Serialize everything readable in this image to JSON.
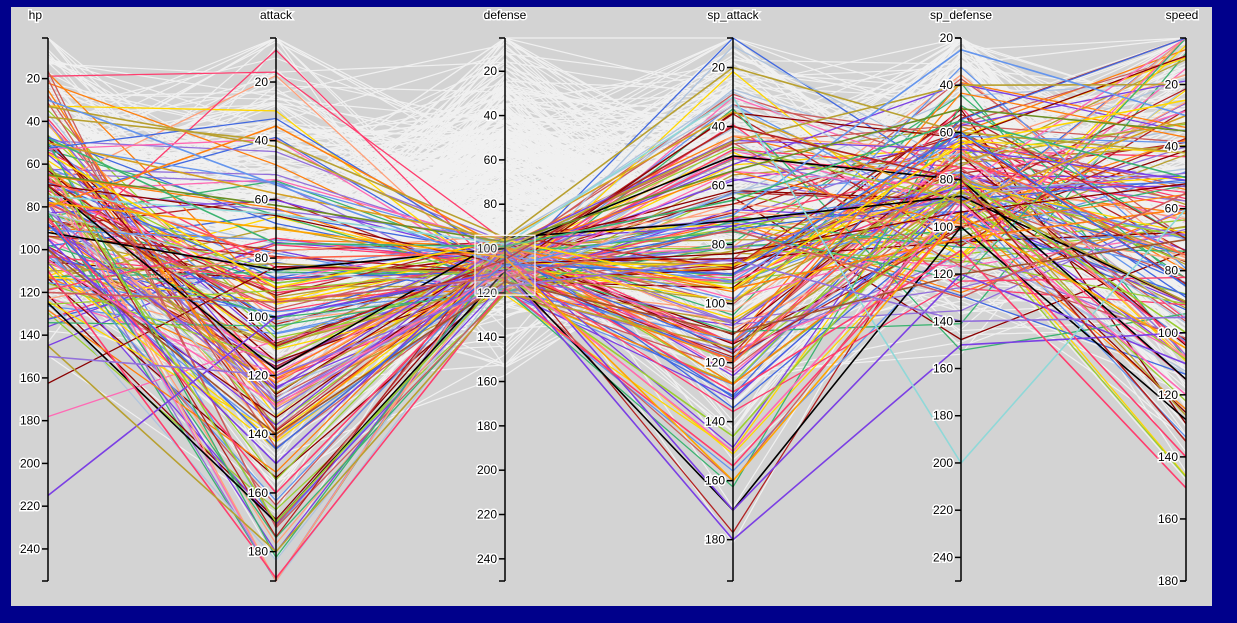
{
  "chart_data": {
    "type": "parallel-coordinates",
    "dimensions": [
      {
        "name": "hp",
        "domain": [
          1,
          255
        ],
        "ticks": [
          20,
          40,
          60,
          80,
          100,
          120,
          140,
          160,
          180,
          200,
          220,
          240
        ],
        "tick_side": "left"
      },
      {
        "name": "attack",
        "domain": [
          5,
          190
        ],
        "ticks": [
          20,
          40,
          60,
          80,
          100,
          120,
          140,
          160,
          180
        ],
        "tick_side": "left"
      },
      {
        "name": "defense",
        "domain": [
          5,
          250
        ],
        "ticks": [
          20,
          40,
          60,
          80,
          100,
          120,
          140,
          160,
          180,
          200,
          220,
          240
        ],
        "tick_side": "left"
      },
      {
        "name": "sp_attack",
        "domain": [
          10,
          194
        ],
        "ticks": [
          20,
          40,
          60,
          80,
          100,
          120,
          140,
          160,
          180
        ],
        "tick_side": "left"
      },
      {
        "name": "sp_defense",
        "domain": [
          20,
          250
        ],
        "ticks": [
          20,
          40,
          60,
          80,
          100,
          120,
          140,
          160,
          180,
          200,
          220,
          240
        ],
        "tick_side": "left"
      },
      {
        "name": "speed",
        "domain": [
          5,
          180
        ],
        "ticks": [
          20,
          40,
          60,
          80,
          100,
          120,
          140,
          160,
          180
        ],
        "tick_side": "left"
      }
    ],
    "brush": {
      "dimension": "defense",
      "range": [
        94,
        121
      ]
    },
    "highlighted_series": [
      {
        "color": "#000000",
        "values": [
          92,
          84,
          100,
          50,
          80,
          115
        ]
      },
      {
        "color": "#000000",
        "values": [
          125,
          170,
          110,
          170,
          100,
          128
        ]
      },
      {
        "color": "#000000",
        "values": [
          70,
          118,
          95,
          72,
          87,
          90
        ]
      },
      {
        "color": "#ff7f0e",
        "values": [
          80,
          35,
          100,
          95,
          105,
          60
        ]
      },
      {
        "color": "#d4a020",
        "values": [
          50,
          58,
          96,
          35,
          90,
          30
        ]
      },
      {
        "color": "#b8a030",
        "values": [
          38,
          40,
          95,
          20,
          60,
          42
        ]
      },
      {
        "color": "#b8a030",
        "values": [
          33,
          42,
          100,
          45,
          40,
          20
        ]
      },
      {
        "color": "#6495ed",
        "values": [
          30,
          55,
          108,
          70,
          25,
          30
        ]
      },
      {
        "color": "#7b3fe4",
        "values": [
          215,
          100,
          110,
          180,
          150,
          100
        ]
      },
      {
        "color": "#7b3fe4",
        "values": [
          95,
          150,
          100,
          170,
          120,
          110
        ]
      },
      {
        "color": "#ff3d6e",
        "values": [
          110,
          189,
          118,
          155,
          95,
          140
        ]
      },
      {
        "color": "#ff3d6e",
        "values": [
          85,
          160,
          105,
          130,
          110,
          150
        ]
      },
      {
        "color": "#9acd32",
        "values": [
          60,
          170,
          112,
          145,
          80,
          100
        ]
      },
      {
        "color": "#b8a030",
        "values": [
          145,
          180,
          120,
          115,
          85,
          90
        ]
      },
      {
        "color": "#8fd8d8",
        "values": [
          75,
          65,
          98,
          30,
          200,
          60
        ]
      },
      {
        "color": "#ff6347",
        "values": [
          68,
          80,
          102,
          120,
          70,
          75
        ]
      },
      {
        "color": "#ffd700",
        "values": [
          55,
          90,
          96,
          95,
          65,
          25
        ]
      },
      {
        "color": "#a0522d",
        "values": [
          100,
          140,
          115,
          110,
          120,
          70
        ]
      },
      {
        "color": "#b22222",
        "values": [
          70,
          110,
          105,
          40,
          80,
          135
        ]
      },
      {
        "color": "#3cb371",
        "values": [
          48,
          75,
          99,
          65,
          55,
          50
        ]
      },
      {
        "color": "#ff69b4",
        "values": [
          105,
          130,
          110,
          150,
          90,
          120
        ]
      },
      {
        "color": "#4169e1",
        "values": [
          88,
          145,
          107,
          90,
          60,
          85
        ]
      },
      {
        "color": "#cd5c5c",
        "values": [
          120,
          95,
          113,
          75,
          130,
          55
        ]
      },
      {
        "color": "#9370db",
        "values": [
          150,
          120,
          117,
          85,
          140,
          95
        ]
      },
      {
        "color": "#6b8e23",
        "values": [
          65,
          62,
          97,
          55,
          50,
          35
        ]
      },
      {
        "color": "#ffa500",
        "values": [
          78,
          70,
          104,
          160,
          95,
          105
        ]
      }
    ],
    "background_series_color": "#f0f0f0",
    "highlight_palette": [
      "#b8a030",
      "#6495ed",
      "#ff3d6e",
      "#9acd32",
      "#7b3fe4",
      "#ff7f0e",
      "#b22222",
      "#ffd700",
      "#3cb371",
      "#ff69b4",
      "#4169e1",
      "#cd5c5c",
      "#9370db",
      "#ffa07a",
      "#b0c4de",
      "#8b0000"
    ]
  }
}
